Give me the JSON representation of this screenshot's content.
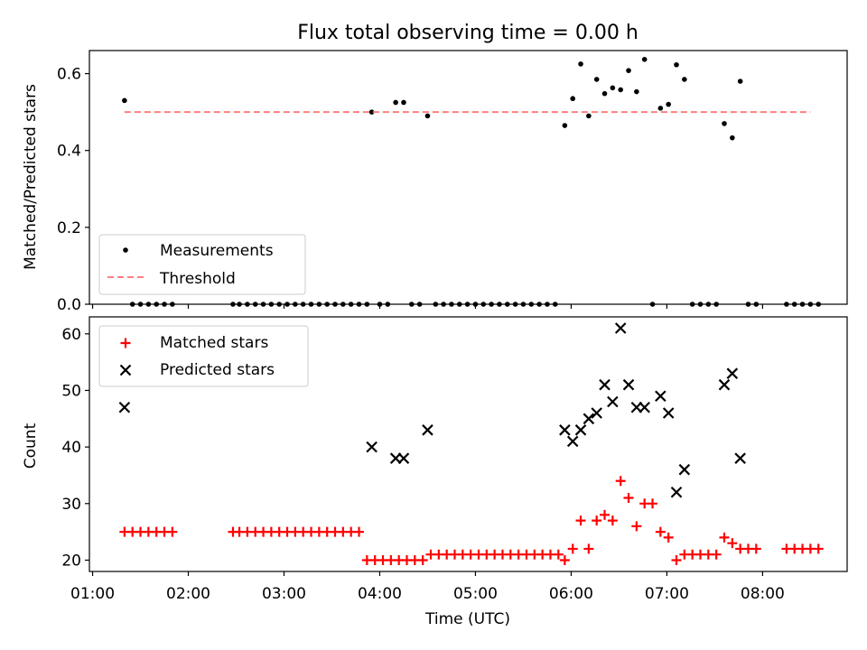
{
  "figure": {
    "title": "Flux total observing time = 0.00 h"
  },
  "chart_data": [
    {
      "type": "scatter",
      "ylabel": "Matched/Predicted stars",
      "ylim": [
        0,
        0.66
      ],
      "xlim": [
        "00:58",
        "08:53"
      ],
      "yticks": [
        "0.0",
        "0.2",
        "0.4",
        "0.6"
      ],
      "grid": false,
      "legend_placement": "lower-left",
      "series": [
        {
          "name": "Measurements",
          "color": "#000000",
          "marker": "dot",
          "points": [
            [
              "01:20",
              0.53
            ],
            [
              "01:25",
              0
            ],
            [
              "01:30",
              0
            ],
            [
              "01:35",
              0
            ],
            [
              "01:40",
              0
            ],
            [
              "01:45",
              0
            ],
            [
              "01:50",
              0
            ],
            [
              "02:28",
              0
            ],
            [
              "02:32",
              0
            ],
            [
              "02:37",
              0
            ],
            [
              "02:42",
              0
            ],
            [
              "02:47",
              0
            ],
            [
              "02:52",
              0
            ],
            [
              "02:57",
              0
            ],
            [
              "03:02",
              0
            ],
            [
              "03:07",
              0
            ],
            [
              "03:12",
              0
            ],
            [
              "03:17",
              0
            ],
            [
              "03:22",
              0
            ],
            [
              "03:27",
              0
            ],
            [
              "03:32",
              0
            ],
            [
              "03:37",
              0
            ],
            [
              "03:42",
              0
            ],
            [
              "03:47",
              0
            ],
            [
              "03:52",
              0
            ],
            [
              "03:55",
              0.5
            ],
            [
              "04:00",
              0
            ],
            [
              "04:05",
              0
            ],
            [
              "04:10",
              0.525
            ],
            [
              "04:15",
              0.525
            ],
            [
              "04:20",
              0
            ],
            [
              "04:25",
              0
            ],
            [
              "04:30",
              0.49
            ],
            [
              "04:35",
              0
            ],
            [
              "04:40",
              0
            ],
            [
              "04:45",
              0
            ],
            [
              "04:50",
              0
            ],
            [
              "04:55",
              0
            ],
            [
              "05:00",
              0
            ],
            [
              "05:05",
              0
            ],
            [
              "05:10",
              0
            ],
            [
              "05:15",
              0
            ],
            [
              "05:20",
              0
            ],
            [
              "05:25",
              0
            ],
            [
              "05:30",
              0
            ],
            [
              "05:35",
              0
            ],
            [
              "05:40",
              0
            ],
            [
              "05:45",
              0
            ],
            [
              "05:50",
              0
            ],
            [
              "05:56",
              0.465
            ],
            [
              "06:01",
              0.535
            ],
            [
              "06:06",
              0.625
            ],
            [
              "06:11",
              0.49
            ],
            [
              "06:16",
              0.585
            ],
            [
              "06:21",
              0.548
            ],
            [
              "06:26",
              0.563
            ],
            [
              "06:31",
              0.558
            ],
            [
              "06:36",
              0.608
            ],
            [
              "06:41",
              0.553
            ],
            [
              "06:46",
              0.637
            ],
            [
              "06:51",
              0
            ],
            [
              "06:56",
              0.51
            ],
            [
              "07:01",
              0.52
            ],
            [
              "07:06",
              0.623
            ],
            [
              "07:11",
              0.585
            ],
            [
              "07:16",
              0
            ],
            [
              "07:21",
              0
            ],
            [
              "07:26",
              0
            ],
            [
              "07:31",
              0
            ],
            [
              "07:36",
              0.47
            ],
            [
              "07:41",
              0.433
            ],
            [
              "07:46",
              0.58
            ],
            [
              "07:51",
              0
            ],
            [
              "07:56",
              0
            ],
            [
              "08:15",
              0
            ],
            [
              "08:20",
              0
            ],
            [
              "08:25",
              0
            ],
            [
              "08:30",
              0
            ],
            [
              "08:35",
              0
            ]
          ]
        },
        {
          "name": "Threshold",
          "color": "#ff7f7f",
          "line_style": "dashed",
          "points": [
            [
              "01:20",
              0.5
            ],
            [
              "08:30",
              0.5
            ]
          ]
        }
      ]
    },
    {
      "type": "scatter",
      "xlabel": "Time (UTC)",
      "ylabel": "Count",
      "ylim": [
        18,
        63
      ],
      "xlim": [
        "00:58",
        "08:53"
      ],
      "xticks": [
        "01:00",
        "02:00",
        "03:00",
        "04:00",
        "05:00",
        "06:00",
        "07:00",
        "08:00"
      ],
      "yticks": [
        "20",
        "30",
        "40",
        "50",
        "60"
      ],
      "grid": false,
      "legend_placement": "upper-left",
      "series": [
        {
          "name": "Matched stars",
          "color": "#ff0000",
          "marker": "plus",
          "points": [
            [
              "01:20",
              25
            ],
            [
              "01:25",
              25
            ],
            [
              "01:30",
              25
            ],
            [
              "01:35",
              25
            ],
            [
              "01:40",
              25
            ],
            [
              "01:45",
              25
            ],
            [
              "01:50",
              25
            ],
            [
              "02:28",
              25
            ],
            [
              "02:32",
              25
            ],
            [
              "02:37",
              25
            ],
            [
              "02:42",
              25
            ],
            [
              "02:47",
              25
            ],
            [
              "02:52",
              25
            ],
            [
              "02:57",
              25
            ],
            [
              "03:02",
              25
            ],
            [
              "03:07",
              25
            ],
            [
              "03:12",
              25
            ],
            [
              "03:17",
              25
            ],
            [
              "03:22",
              25
            ],
            [
              "03:27",
              25
            ],
            [
              "03:32",
              25
            ],
            [
              "03:37",
              25
            ],
            [
              "03:42",
              25
            ],
            [
              "03:47",
              25
            ],
            [
              "03:52",
              20
            ],
            [
              "03:57",
              20
            ],
            [
              "04:02",
              20
            ],
            [
              "04:07",
              20
            ],
            [
              "04:12",
              20
            ],
            [
              "04:17",
              20
            ],
            [
              "04:22",
              20
            ],
            [
              "04:27",
              20
            ],
            [
              "04:32",
              21
            ],
            [
              "04:37",
              21
            ],
            [
              "04:42",
              21
            ],
            [
              "04:47",
              21
            ],
            [
              "04:52",
              21
            ],
            [
              "04:57",
              21
            ],
            [
              "05:02",
              21
            ],
            [
              "05:07",
              21
            ],
            [
              "05:12",
              21
            ],
            [
              "05:17",
              21
            ],
            [
              "05:22",
              21
            ],
            [
              "05:27",
              21
            ],
            [
              "05:32",
              21
            ],
            [
              "05:37",
              21
            ],
            [
              "05:42",
              21
            ],
            [
              "05:47",
              21
            ],
            [
              "05:52",
              21
            ],
            [
              "05:56",
              20
            ],
            [
              "06:01",
              22
            ],
            [
              "06:06",
              27
            ],
            [
              "06:11",
              22
            ],
            [
              "06:16",
              27
            ],
            [
              "06:21",
              28
            ],
            [
              "06:26",
              27
            ],
            [
              "06:31",
              34
            ],
            [
              "06:36",
              31
            ],
            [
              "06:41",
              26
            ],
            [
              "06:46",
              30
            ],
            [
              "06:51",
              30
            ],
            [
              "06:56",
              25
            ],
            [
              "07:01",
              24
            ],
            [
              "07:06",
              20
            ],
            [
              "07:11",
              21
            ],
            [
              "07:16",
              21
            ],
            [
              "07:21",
              21
            ],
            [
              "07:26",
              21
            ],
            [
              "07:31",
              21
            ],
            [
              "07:36",
              24
            ],
            [
              "07:41",
              23
            ],
            [
              "07:46",
              22
            ],
            [
              "07:51",
              22
            ],
            [
              "07:56",
              22
            ],
            [
              "08:15",
              22
            ],
            [
              "08:20",
              22
            ],
            [
              "08:25",
              22
            ],
            [
              "08:30",
              22
            ],
            [
              "08:35",
              22
            ]
          ]
        },
        {
          "name": "Predicted stars",
          "color": "#000000",
          "marker": "x",
          "points": [
            [
              "01:20",
              47
            ],
            [
              "03:55",
              40
            ],
            [
              "04:10",
              38
            ],
            [
              "04:15",
              38
            ],
            [
              "04:30",
              43
            ],
            [
              "05:56",
              43
            ],
            [
              "06:01",
              41
            ],
            [
              "06:06",
              43
            ],
            [
              "06:11",
              45
            ],
            [
              "06:16",
              46
            ],
            [
              "06:21",
              51
            ],
            [
              "06:26",
              48
            ],
            [
              "06:31",
              61
            ],
            [
              "06:36",
              51
            ],
            [
              "06:41",
              47
            ],
            [
              "06:46",
              47
            ],
            [
              "06:56",
              49
            ],
            [
              "07:01",
              46
            ],
            [
              "07:06",
              32
            ],
            [
              "07:11",
              36
            ],
            [
              "07:36",
              51
            ],
            [
              "07:41",
              53
            ],
            [
              "07:46",
              38
            ]
          ]
        }
      ]
    }
  ]
}
